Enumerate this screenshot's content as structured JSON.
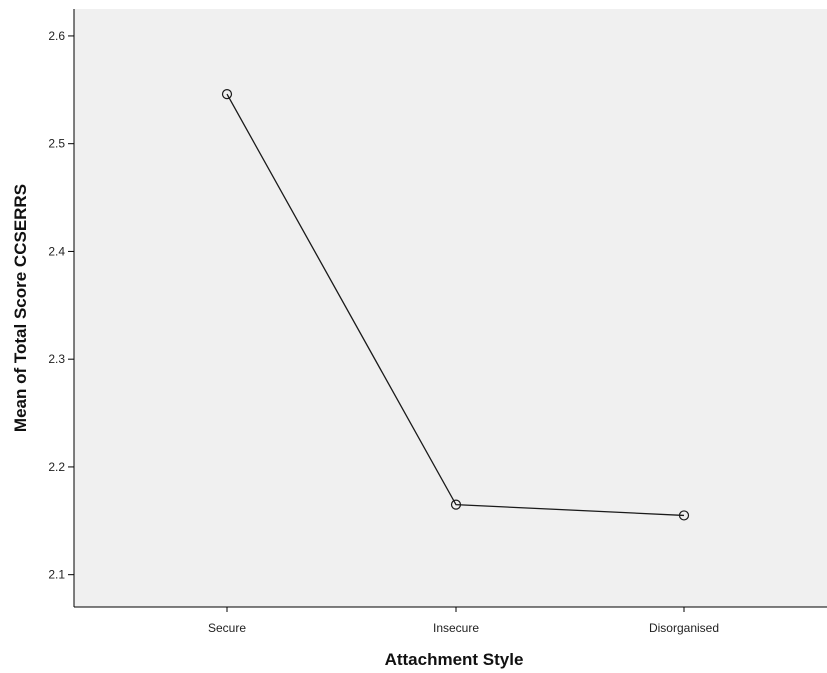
{
  "chart_data": {
    "type": "line",
    "xlabel": "Attachment Style",
    "ylabel": "Mean of Total Score CCSERRS",
    "categories": [
      "Secure",
      "Insecure",
      "Disorganised"
    ],
    "series": [
      {
        "values": [
          2.546,
          2.165,
          2.155
        ]
      }
    ],
    "ylim": [
      2.07,
      2.625
    ],
    "yticks": [
      2.1,
      2.2,
      2.3,
      2.4,
      2.5,
      2.6
    ],
    "ytick_labels": [
      "2.1",
      "2.2",
      "2.3",
      "2.4",
      "2.5",
      "2.6"
    ],
    "grid": false,
    "legend": "none",
    "colors": {
      "plot_background": "#f0f0f0",
      "line": "#1a1a1a",
      "axis": "#000000"
    },
    "marker": "open-circle"
  }
}
